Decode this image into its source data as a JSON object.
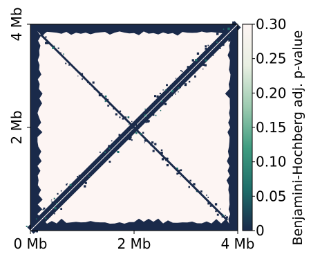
{
  "chart_data": {
    "type": "heatmap",
    "title": "",
    "x_ticks": [
      "0 Mb",
      "2 Mb",
      "4 Mb"
    ],
    "y_ticks": [
      "2 Mb",
      "4 Mb"
    ],
    "x_range_mb": [
      0,
      4
    ],
    "y_range_mb": [
      0,
      4
    ],
    "colorbar": {
      "label": "Benjamini-Hochberg adj. p-value",
      "ticks": [
        "0",
        "0.05",
        "0.10",
        "0.15",
        "0.20",
        "0.25",
        "0.30"
      ],
      "range": [
        0,
        0.3
      ],
      "colors": [
        "#1a2a4a",
        "#1f6e6a",
        "#3f9c80",
        "#9ccbb0",
        "#e8efe2",
        "#fdf5f3"
      ]
    },
    "background_value": 0.3,
    "significant_regions": [
      {
        "feature": "main diagonal",
        "from_mb": [
          0,
          0
        ],
        "to_mb": [
          4,
          4
        ],
        "value": 0
      },
      {
        "feature": "anti-diagonal",
        "from_mb": [
          0.2,
          3.8
        ],
        "to_mb": [
          3.8,
          0.2
        ],
        "value": 0
      },
      {
        "feature": "matrix border",
        "value": 0
      }
    ]
  }
}
